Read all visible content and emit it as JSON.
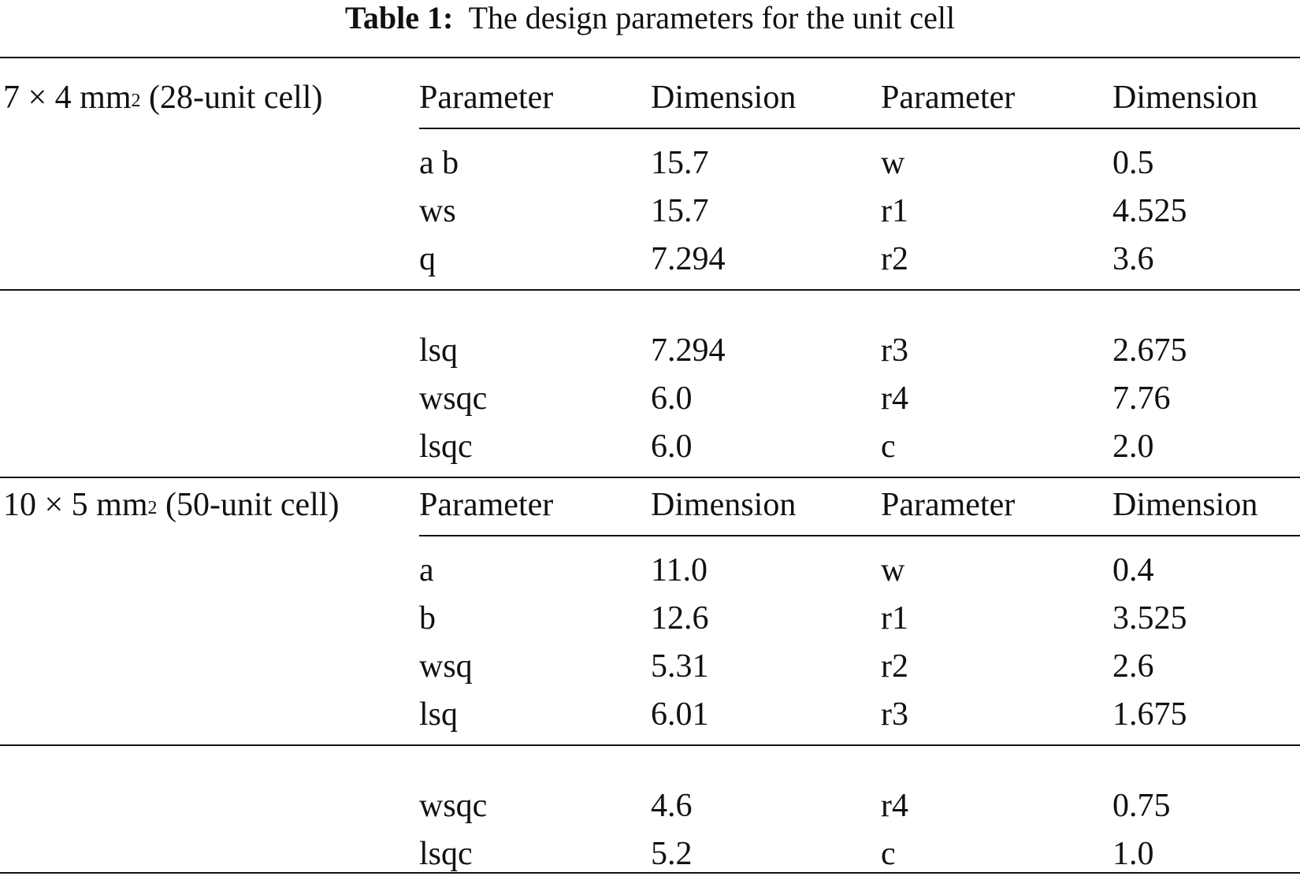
{
  "caption": {
    "label": "Table 1:",
    "text": "The design parameters for the unit cell"
  },
  "headers": [
    "Parameter",
    "Dimension",
    "Parameter",
    "Dimension"
  ],
  "sections": [
    {
      "label_prefix": "7 × 4 mm",
      "label_sup": "2",
      "label_suffix": " (28-unit cell)",
      "blocks": [
        [
          [
            "a b",
            "15.7",
            "w",
            "0.5"
          ],
          [
            "ws",
            "15.7",
            "r1",
            "4.525"
          ],
          [
            "q",
            "7.294",
            "r2",
            "3.6"
          ]
        ],
        [
          [
            "lsq",
            "7.294",
            "r3",
            "2.675"
          ],
          [
            "wsqc",
            "6.0",
            "r4",
            "7.76"
          ],
          [
            "lsqc",
            "6.0",
            "c",
            "2.0"
          ]
        ]
      ]
    },
    {
      "label_prefix": "10 × 5 mm",
      "label_sup": "2",
      "label_suffix": " (50-unit cell)",
      "blocks": [
        [
          [
            "a",
            "11.0",
            "w",
            "0.4"
          ],
          [
            "b",
            "12.6",
            "r1",
            "3.525"
          ],
          [
            "wsq",
            "5.31",
            "r2",
            "2.6"
          ],
          [
            "lsq",
            "6.01",
            "r3",
            "1.675"
          ]
        ],
        [
          [
            "wsqc",
            "4.6",
            "r4",
            "0.75"
          ],
          [
            "lsqc",
            "5.2",
            "c",
            "1.0"
          ]
        ]
      ]
    }
  ]
}
